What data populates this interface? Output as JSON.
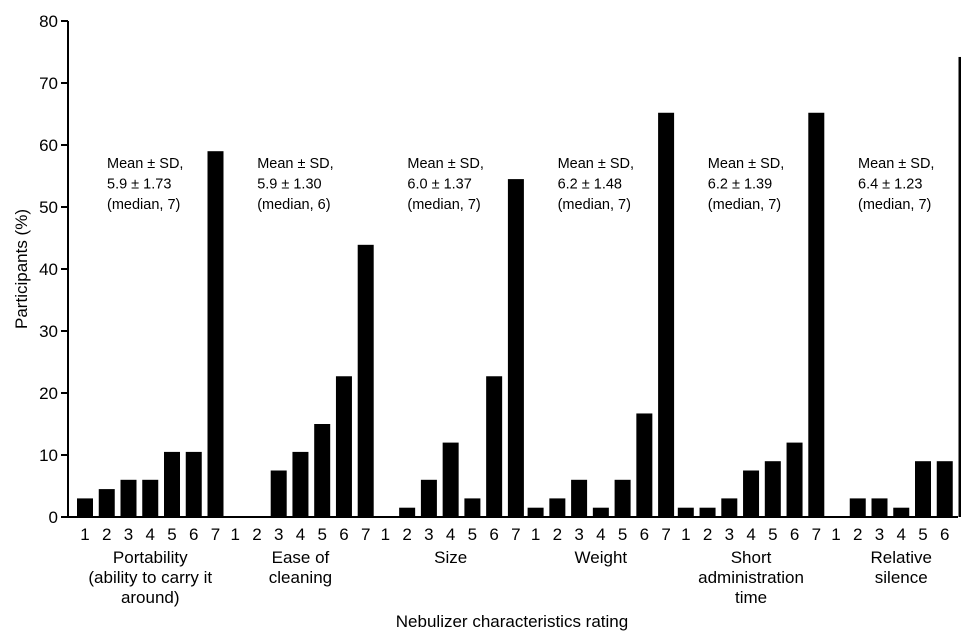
{
  "chart_data": {
    "type": "bar",
    "ylabel": "Participants (%)",
    "xlabel": "Nebulizer characteristics rating",
    "ylim": [
      0,
      80
    ],
    "yticks": [
      0,
      10,
      20,
      30,
      40,
      50,
      60,
      70,
      80
    ],
    "ratings": [
      "1",
      "2",
      "3",
      "4",
      "5",
      "6",
      "7"
    ],
    "bar_color": "#000000",
    "grid": false,
    "groups": [
      {
        "label_lines": [
          "Portability",
          "(ability to carry it",
          "around)"
        ],
        "values": [
          3.0,
          4.5,
          6.0,
          6.0,
          10.5,
          10.5,
          59.0
        ],
        "annotation": [
          "Mean ± SD,",
          "5.9 ± 1.73",
          "(median, 7)"
        ]
      },
      {
        "label_lines": [
          "Ease of",
          "cleaning"
        ],
        "values": [
          0,
          0,
          7.5,
          10.5,
          15.0,
          22.7,
          43.9
        ],
        "annotation": [
          "Mean ± SD,",
          "5.9 ± 1.30",
          "(median, 6)"
        ]
      },
      {
        "label_lines": [
          "Size"
        ],
        "values": [
          0,
          1.5,
          6.0,
          12.0,
          3.0,
          22.7,
          54.5
        ],
        "annotation": [
          "Mean ± SD,",
          "6.0 ± 1.37",
          "(median, 7)"
        ]
      },
      {
        "label_lines": [
          "Weight"
        ],
        "values": [
          1.5,
          3.0,
          6.0,
          1.5,
          6.0,
          16.7,
          65.2
        ],
        "annotation": [
          "Mean ± SD,",
          "6.2 ± 1.48",
          "(median, 7)"
        ]
      },
      {
        "label_lines": [
          "Short",
          "administration",
          "time"
        ],
        "values": [
          1.5,
          1.5,
          3.0,
          7.5,
          9.0,
          12.0,
          65.2
        ],
        "annotation": [
          "Mean ± SD,",
          "6.2 ± 1.39",
          "(median, 7)"
        ]
      },
      {
        "label_lines": [
          "Relative",
          "silence"
        ],
        "values": [
          0,
          3.0,
          3.0,
          1.5,
          9.0,
          9.0,
          74.2
        ],
        "annotation": [
          "Mean ± SD,",
          "6.4 ± 1.23",
          "(median, 7)"
        ]
      }
    ]
  }
}
